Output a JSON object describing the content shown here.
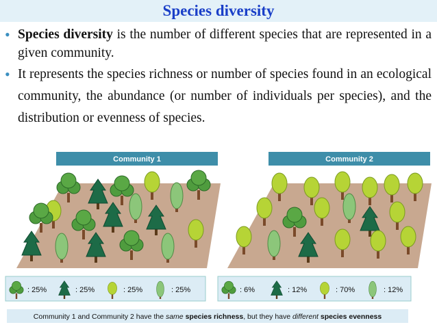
{
  "header": {
    "title": "Species diversity"
  },
  "bullets": [
    {
      "bold": "Species diversity",
      "text": " is the number of different species that are represented in a given community."
    },
    {
      "text": "It represents the species richness or number of species found in an ecological community, the abundance (or number of individuals per species), and the distribution or evenness of species."
    }
  ],
  "communities": [
    {
      "label": "Community 1",
      "legend": [
        ": 25%",
        ": 25%",
        ": 25%",
        ": 25%"
      ]
    },
    {
      "label": "Community 2",
      "legend": [
        ": 6%",
        ": 12%",
        ": 70%",
        ": 12%"
      ]
    }
  ],
  "caption": {
    "parts": [
      "Community 1 and Community 2 have the ",
      "same",
      " species richness",
      ", but they have ",
      "different",
      " species evenness"
    ]
  }
}
